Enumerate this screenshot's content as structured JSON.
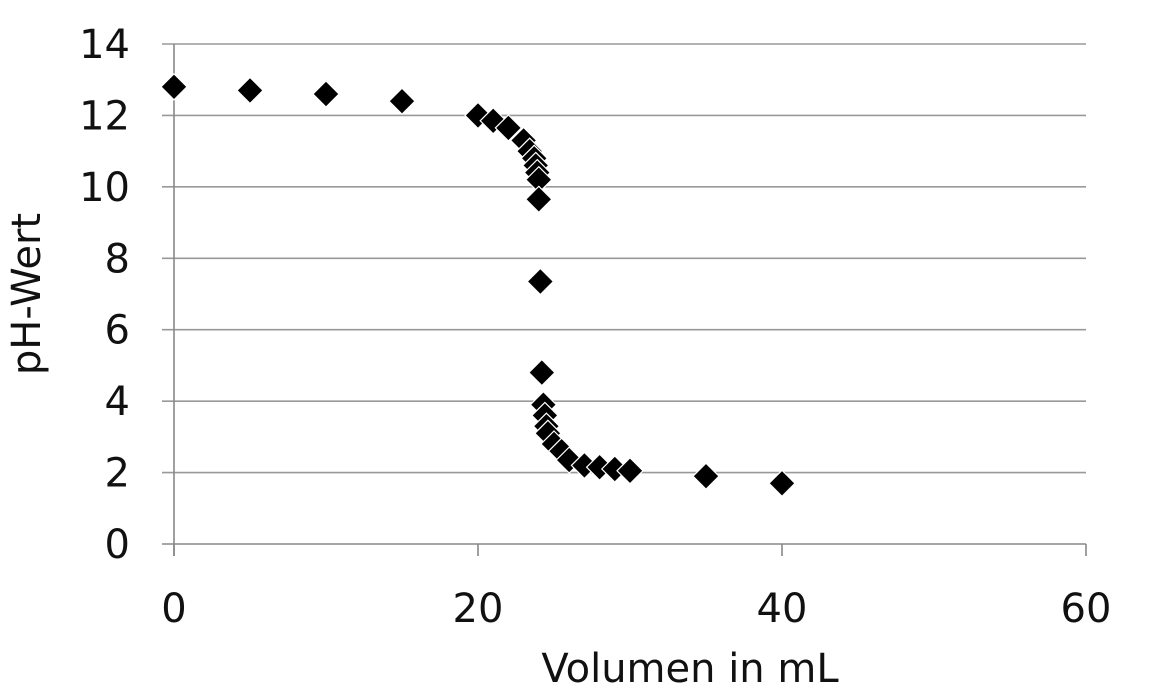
{
  "chart_data": {
    "type": "scatter",
    "title": "",
    "xlabel": "Volumen in mL",
    "ylabel": "pH-Wert",
    "xlim": [
      0,
      60
    ],
    "ylim": [
      0,
      14
    ],
    "xticks": [
      0,
      20,
      40,
      60
    ],
    "yticks": [
      0,
      2,
      4,
      6,
      8,
      10,
      12,
      14
    ],
    "grid": "horizontal",
    "legend": "none",
    "marker": "diamond",
    "marker_color": "#000000",
    "gridline_color": "#999999",
    "series": [
      {
        "points": [
          {
            "x": 0,
            "y": 12.8
          },
          {
            "x": 5,
            "y": 12.7
          },
          {
            "x": 10,
            "y": 12.6
          },
          {
            "x": 15,
            "y": 12.4
          },
          {
            "x": 20,
            "y": 12.0
          },
          {
            "x": 21,
            "y": 11.85
          },
          {
            "x": 22,
            "y": 11.65
          },
          {
            "x": 23,
            "y": 11.3
          },
          {
            "x": 23.4,
            "y": 11.0
          },
          {
            "x": 23.7,
            "y": 10.8
          },
          {
            "x": 23.8,
            "y": 10.6
          },
          {
            "x": 23.9,
            "y": 10.4
          },
          {
            "x": 24.0,
            "y": 10.2
          },
          {
            "x": 24.0,
            "y": 9.65
          },
          {
            "x": 24.1,
            "y": 7.35
          },
          {
            "x": 24.2,
            "y": 4.8
          },
          {
            "x": 24.3,
            "y": 3.9
          },
          {
            "x": 24.4,
            "y": 3.6
          },
          {
            "x": 24.5,
            "y": 3.3
          },
          {
            "x": 24.6,
            "y": 3.1
          },
          {
            "x": 25,
            "y": 2.8
          },
          {
            "x": 25.5,
            "y": 2.6
          },
          {
            "x": 26,
            "y": 2.35
          },
          {
            "x": 27,
            "y": 2.2
          },
          {
            "x": 28,
            "y": 2.15
          },
          {
            "x": 29,
            "y": 2.1
          },
          {
            "x": 30,
            "y": 2.05
          },
          {
            "x": 35,
            "y": 1.9
          },
          {
            "x": 40,
            "y": 1.7
          }
        ]
      }
    ]
  }
}
